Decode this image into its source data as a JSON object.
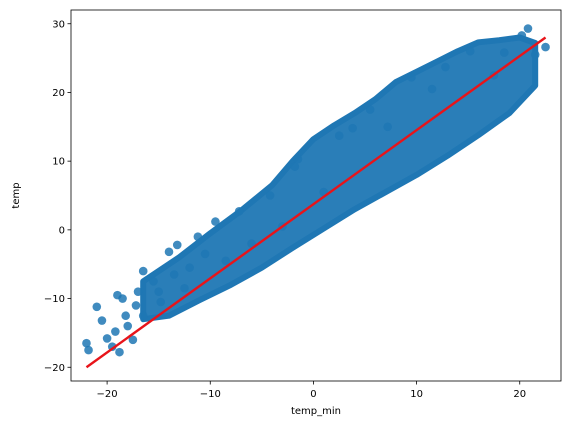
{
  "chart_data": {
    "type": "scatter",
    "xlabel": "temp_min",
    "ylabel": "temp",
    "xlim": [
      -23.5,
      24.0
    ],
    "ylim": [
      -22.0,
      32.0
    ],
    "xticks": [
      -20,
      -10,
      0,
      10,
      20
    ],
    "yticks": [
      -20,
      -10,
      0,
      10,
      20,
      30
    ],
    "grid": false,
    "series": [
      {
        "kind": "scatter",
        "color": "#1f77b4",
        "approx_relation": "temp ≈ 1.07 * temp_min + 3.7 (dense cloud)",
        "x_range": [
          -22,
          22.5
        ],
        "points": [
          [
            -22,
            -16.5
          ],
          [
            -21.8,
            -17.5
          ],
          [
            -21,
            -11.2
          ],
          [
            -20.5,
            -13.2
          ],
          [
            -20,
            -15.8
          ],
          [
            -19.5,
            -17.0
          ],
          [
            -19.2,
            -14.8
          ],
          [
            -19,
            -9.5
          ],
          [
            -18.8,
            -17.8
          ],
          [
            -18.5,
            -10.0
          ],
          [
            -18.2,
            -12.5
          ],
          [
            -18,
            -14.0
          ],
          [
            -17.5,
            -16.0
          ],
          [
            -17.2,
            -11.0
          ],
          [
            -17,
            -9.0
          ],
          [
            -16.5,
            -6.0
          ],
          [
            -16.5,
            -12.5
          ],
          [
            -15.5,
            -7.5
          ],
          [
            -15,
            -9.0
          ],
          [
            -14.8,
            -10.5
          ],
          [
            -14,
            -3.2
          ],
          [
            -13.5,
            -6.5
          ],
          [
            -13.2,
            -2.2
          ],
          [
            -12.5,
            -8.5
          ],
          [
            -12,
            -5.5
          ],
          [
            -11.2,
            -1.0
          ],
          [
            -10.5,
            -3.5
          ],
          [
            -9.5,
            1.2
          ],
          [
            -8.5,
            -4.5
          ],
          [
            -7.2,
            2.7
          ],
          [
            -6,
            -2.0
          ],
          [
            -4.2,
            5.0
          ],
          [
            -3,
            0.5
          ],
          [
            -1.8,
            9.2
          ],
          [
            -1.5,
            10.3
          ],
          [
            1,
            5.5
          ],
          [
            2.5,
            13.7
          ],
          [
            3.8,
            14.8
          ],
          [
            5.5,
            17.5
          ],
          [
            7.2,
            15.0
          ],
          [
            9.5,
            22.2
          ],
          [
            11.5,
            20.5
          ],
          [
            12.8,
            23.7
          ],
          [
            15.2,
            26.0
          ],
          [
            17.5,
            22.5
          ],
          [
            18.5,
            25.8
          ],
          [
            20.2,
            28.3
          ],
          [
            20.8,
            29.3
          ],
          [
            21.5,
            25.5
          ],
          [
            22.5,
            26.6
          ]
        ]
      },
      {
        "kind": "regression_line",
        "color": "#e8141a",
        "points": [
          [
            -22,
            -20.0
          ],
          [
            22.5,
            28.0
          ]
        ]
      }
    ]
  }
}
